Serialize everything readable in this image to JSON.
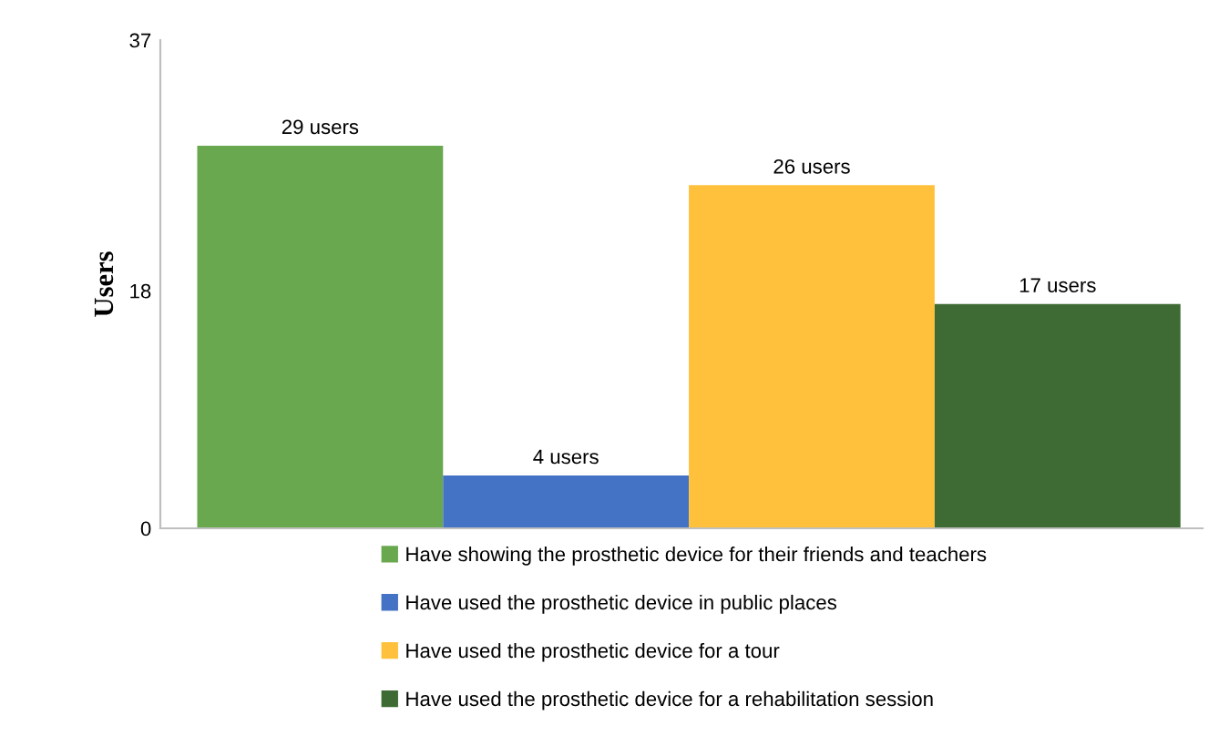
{
  "chart_data": {
    "type": "bar",
    "ylabel": "Users",
    "categories": [
      null
    ],
    "ylim": [
      0,
      37
    ],
    "yticks": [
      0,
      18,
      37
    ],
    "grid": false,
    "legend": "bottom",
    "series": [
      {
        "name": "Have showing the prosthetic device for their friends and teachers",
        "color": "#6aa84f",
        "values": [
          29
        ],
        "value_labels": [
          "29 users"
        ]
      },
      {
        "name": "Have used the prosthetic device in public places",
        "color": "#4472c4",
        "values": [
          4
        ],
        "value_labels": [
          "4 users"
        ]
      },
      {
        "name": "Have used the prosthetic device for a tour",
        "color": "#ffc13b",
        "values": [
          26
        ],
        "value_labels": [
          "26 users"
        ]
      },
      {
        "name": "Have used the prosthetic device for a rehabilitation session",
        "color": "#3e6b34",
        "values": [
          17
        ],
        "value_labels": [
          "17 users"
        ]
      }
    ]
  }
}
